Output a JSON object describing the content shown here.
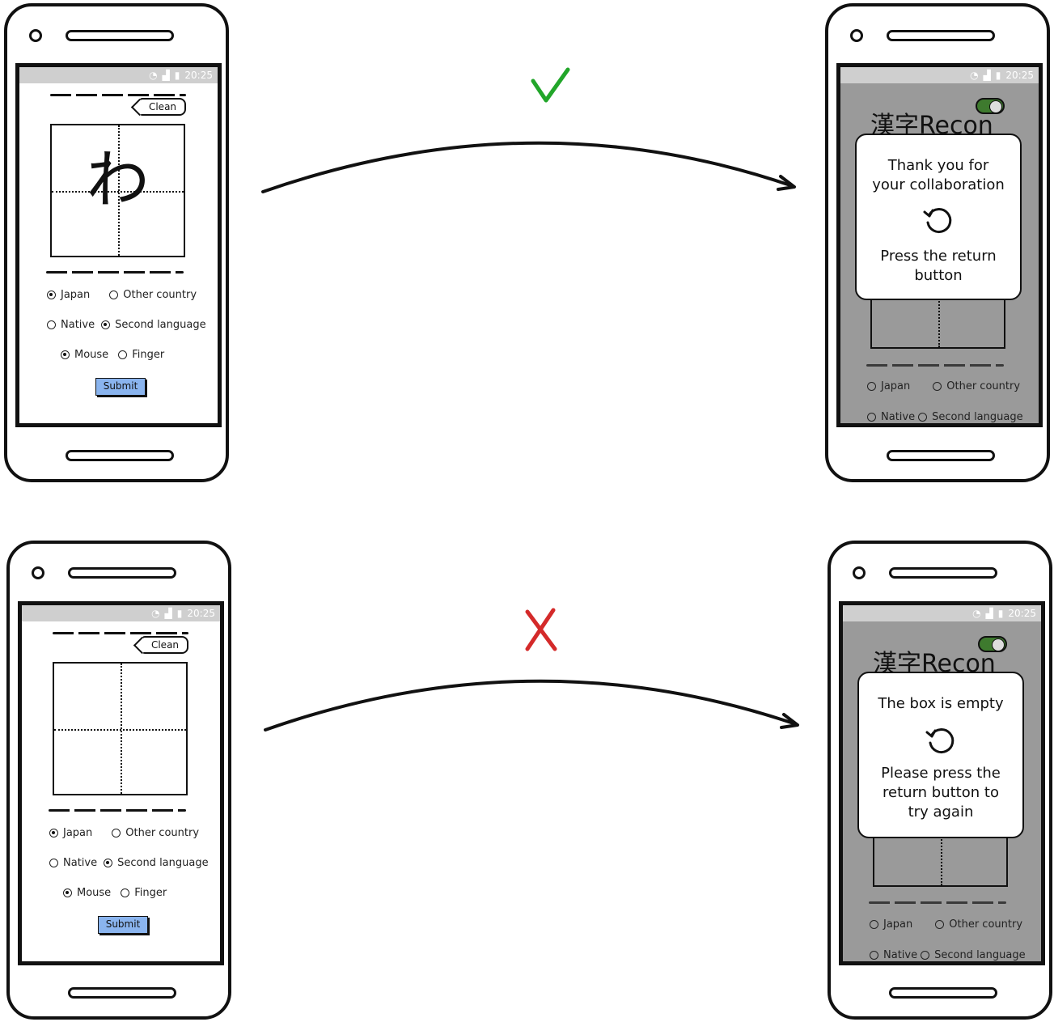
{
  "status_bar": {
    "time": "20:25",
    "icons": [
      "wifi-icon",
      "signal-icon",
      "battery-icon"
    ]
  },
  "form": {
    "clean_label": "Clean",
    "kana_sample": "わ",
    "origin_options": [
      "Japan",
      "Other country"
    ],
    "language_options": [
      "Native",
      "Second language"
    ],
    "input_options": [
      "Mouse",
      "Finger"
    ],
    "submit_label": "Submit"
  },
  "result_screen": {
    "brand": "漢字Recon",
    "toggle_on_color": "#3e7a2e"
  },
  "success": {
    "marker": "✓",
    "marker_color": "#22a62a",
    "message_line1": "Thank you for",
    "message_line2": "your collaboration",
    "instruction_line1": "Press the return",
    "instruction_line2": "button"
  },
  "failure": {
    "marker": "✗",
    "marker_color": "#d42a2a",
    "message_line1": "The box is empty",
    "instruction_line1": "Please press the",
    "instruction_line2": "return button to",
    "instruction_line3": "try again"
  }
}
